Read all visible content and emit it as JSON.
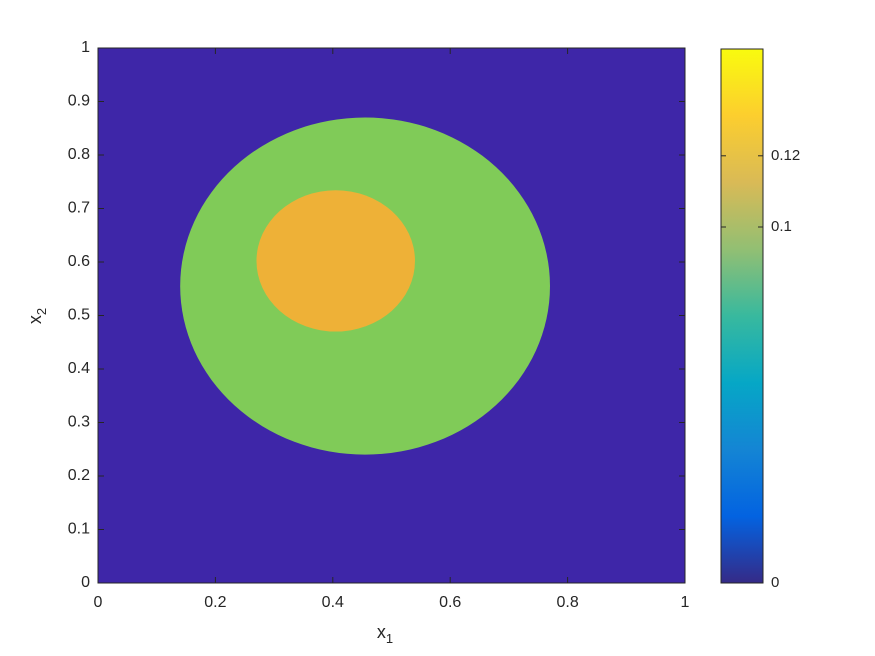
{
  "chart_data": {
    "type": "image",
    "xlabel": {
      "text": "x",
      "subscript": "1"
    },
    "ylabel": {
      "text": "x",
      "subscript": "2"
    },
    "xlim": [
      0,
      1
    ],
    "xticks": [
      0,
      0.2,
      0.4,
      0.6,
      0.8,
      1
    ],
    "ylim": [
      0,
      1
    ],
    "yticks": [
      0,
      0.1,
      0.2,
      0.3,
      0.4,
      0.5,
      0.6,
      0.7,
      0.8,
      0.9,
      1
    ],
    "background": {
      "value": 0,
      "color": "#3e26a8"
    },
    "regions": [
      {
        "shape": "ellipse",
        "cx": 0.455,
        "cy": 0.555,
        "rx": 0.315,
        "ry": 0.315,
        "value": 0.1,
        "color": "#80cb58"
      },
      {
        "shape": "ellipse",
        "cx": 0.405,
        "cy": 0.602,
        "rx": 0.135,
        "ry": 0.132,
        "value": 0.125,
        "color": "#eeb137"
      }
    ],
    "colorbar": {
      "clim": [
        0,
        0.15
      ],
      "ticks": [
        0,
        0.1,
        0.12
      ],
      "colormap": [
        "#352a87",
        "#0363e1",
        "#1485d4",
        "#06a7c6",
        "#38b99e",
        "#92bf73",
        "#d9ba56",
        "#fcce2e",
        "#f9fb0e"
      ]
    }
  }
}
